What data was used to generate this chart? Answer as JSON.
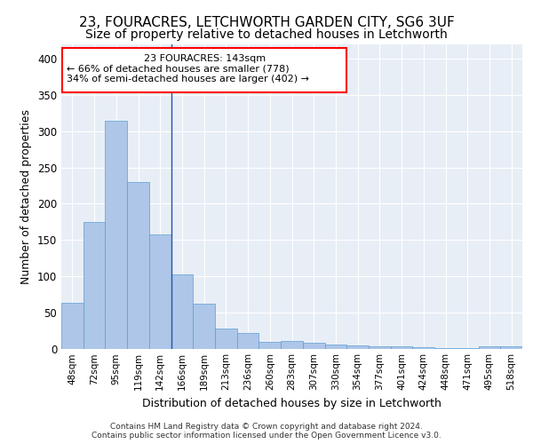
{
  "title_line1": "23, FOURACRES, LETCHWORTH GARDEN CITY, SG6 3UF",
  "title_line2": "Size of property relative to detached houses in Letchworth",
  "xlabel": "Distribution of detached houses by size in Letchworth",
  "ylabel": "Number of detached properties",
  "footer_line1": "Contains HM Land Registry data © Crown copyright and database right 2024.",
  "footer_line2": "Contains public sector information licensed under the Open Government Licence v3.0.",
  "categories": [
    "48sqm",
    "72sqm",
    "95sqm",
    "119sqm",
    "142sqm",
    "166sqm",
    "189sqm",
    "213sqm",
    "236sqm",
    "260sqm",
    "283sqm",
    "307sqm",
    "330sqm",
    "354sqm",
    "377sqm",
    "401sqm",
    "424sqm",
    "448sqm",
    "471sqm",
    "495sqm",
    "518sqm"
  ],
  "values": [
    63,
    175,
    315,
    230,
    158,
    102,
    62,
    27,
    21,
    9,
    10,
    8,
    6,
    4,
    3,
    3,
    2,
    1,
    1,
    3,
    3
  ],
  "bar_color": "#aec6e8",
  "bar_edge_color": "#5a9fd4",
  "property_line_x": 4.5,
  "annotation_text_line1": "23 FOURACRES: 143sqm",
  "annotation_text_line2": "← 66% of detached houses are smaller (778)",
  "annotation_text_line3": "34% of semi-detached houses are larger (402) →",
  "annotation_box_color": "red",
  "annotation_box_facecolor": "white",
  "ylim": [
    0,
    420
  ],
  "background_color": "#e8eef6",
  "grid_color": "white",
  "title_fontsize": 11,
  "subtitle_fontsize": 10,
  "tick_fontsize": 7.5,
  "ylabel_fontsize": 9,
  "xlabel_fontsize": 9,
  "footer_fontsize": 6.5
}
